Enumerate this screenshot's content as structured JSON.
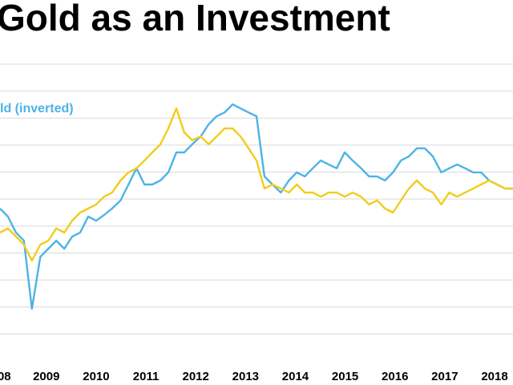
{
  "chart_data": {
    "type": "line",
    "title": "Gold as an Investment",
    "x": [
      2008.07,
      2008.23,
      2008.39,
      2008.55,
      2008.71,
      2008.88,
      2009.04,
      2009.2,
      2009.36,
      2009.52,
      2009.68,
      2009.84,
      2010.0,
      2010.16,
      2010.32,
      2010.49,
      2010.65,
      2010.81,
      2010.97,
      2011.13,
      2011.29,
      2011.45,
      2011.61,
      2011.77,
      2011.93,
      2012.1,
      2012.26,
      2012.42,
      2012.58,
      2012.74,
      2012.9,
      2013.06,
      2013.22,
      2013.38,
      2013.54,
      2013.71,
      2013.87,
      2014.03,
      2014.19,
      2014.35,
      2014.51,
      2014.67,
      2014.83,
      2014.99,
      2015.15,
      2015.32,
      2015.48,
      2015.64,
      2015.8,
      2015.96,
      2016.12,
      2016.28,
      2016.44,
      2016.6,
      2016.76,
      2016.93,
      2017.09,
      2017.25,
      2017.41,
      2017.57,
      2017.73,
      2017.89,
      2018.05,
      2018.21,
      2018.37
    ],
    "series": [
      {
        "name": "ld (inverted)",
        "color": "#4db3e6",
        "values": [
          56.5,
          53.5,
          47.6,
          44.6,
          19.3,
          38.6,
          41.6,
          44.6,
          41.6,
          46.1,
          47.6,
          53.5,
          52.0,
          54.1,
          56.5,
          59.5,
          65.4,
          71.4,
          65.4,
          65.4,
          66.9,
          69.9,
          77.3,
          77.3,
          80.3,
          83.2,
          87.7,
          90.7,
          92.1,
          95.1,
          93.6,
          92.1,
          90.7,
          68.4,
          65.4,
          62.4,
          66.9,
          69.9,
          68.4,
          71.4,
          74.3,
          72.8,
          71.4,
          77.3,
          74.3,
          71.4,
          68.4,
          68.4,
          66.9,
          69.9,
          74.3,
          75.8,
          78.8,
          78.8,
          75.8,
          69.9,
          71.4,
          72.8,
          71.4,
          69.9,
          69.9,
          66.9,
          65.4,
          63.9,
          63.9
        ]
      },
      {
        "color": "#f2cc1c",
        "values": [
          47.6,
          49.1,
          46.1,
          43.1,
          37.2,
          43.1,
          44.6,
          49.1,
          47.6,
          52.0,
          55.0,
          56.5,
          58.0,
          60.9,
          62.4,
          66.9,
          69.9,
          71.4,
          74.3,
          77.3,
          80.3,
          86.2,
          93.6,
          84.7,
          81.8,
          83.2,
          80.3,
          83.2,
          86.2,
          86.2,
          83.2,
          78.8,
          74.3,
          63.9,
          65.4,
          63.9,
          62.4,
          65.4,
          62.4,
          62.4,
          60.9,
          62.4,
          62.4,
          60.9,
          62.4,
          60.9,
          58.0,
          59.5,
          56.5,
          55.0,
          59.5,
          63.9,
          66.9,
          63.9,
          62.4,
          58.0,
          62.4,
          60.9,
          62.4,
          63.9,
          65.4,
          66.9,
          65.4,
          63.9,
          63.9
        ]
      }
    ],
    "xlim": [
      2008.07,
      2018.37
    ],
    "xticks": [
      {
        "value": 2008,
        "label": "08"
      },
      2009,
      2010,
      2011,
      2012,
      2013,
      2014,
      2015,
      2016,
      2017,
      2018
    ],
    "ylim": [
      0,
      110
    ],
    "gridlines": [
      10,
      20,
      30,
      40,
      50,
      60,
      70,
      80,
      90,
      100,
      110
    ],
    "grid": true
  }
}
